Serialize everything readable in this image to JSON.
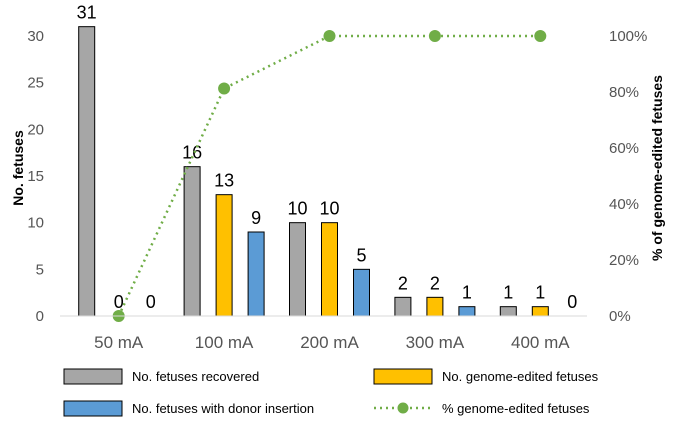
{
  "chart_data": {
    "type": "bar",
    "categories": [
      "50 mA",
      "100 mA",
      "200 mA",
      "300 mA",
      "400 mA"
    ],
    "series": [
      {
        "name": "No. fetuses recovered",
        "axis": "left",
        "color": "#a6a6a6",
        "values": [
          31,
          16,
          10,
          2,
          1
        ]
      },
      {
        "name": "No. genome-edited fetuses",
        "axis": "left",
        "color": "#ffc000",
        "values": [
          0,
          13,
          10,
          2,
          1
        ]
      },
      {
        "name": "No. fetuses with donor insertion",
        "axis": "left",
        "color": "#5b9bd5",
        "values": [
          0,
          9,
          5,
          1,
          0
        ]
      },
      {
        "name": "% genome-edited fetuses",
        "axis": "right",
        "type": "line",
        "style": "dotted",
        "color": "#70ad47",
        "values": [
          0,
          81.25,
          100,
          100,
          100
        ]
      }
    ],
    "data_labels": [
      [
        "31",
        "16",
        "10",
        "2",
        "1"
      ],
      [
        "0",
        "13",
        "10",
        "2",
        "1"
      ],
      [
        "0",
        "9",
        "5",
        "1",
        "0"
      ]
    ],
    "ylabel": "No. fetuses",
    "ylim": [
      0,
      30
    ],
    "yticks": [
      "0",
      "5",
      "10",
      "15",
      "20",
      "25",
      "30"
    ],
    "y2label": "% of genome-edited fetuses",
    "y2lim": [
      0,
      100
    ],
    "y2ticks": [
      "0%",
      "20%",
      "40%",
      "60%",
      "80%",
      "100%"
    ],
    "grid": false,
    "legend_position": "bottom"
  }
}
